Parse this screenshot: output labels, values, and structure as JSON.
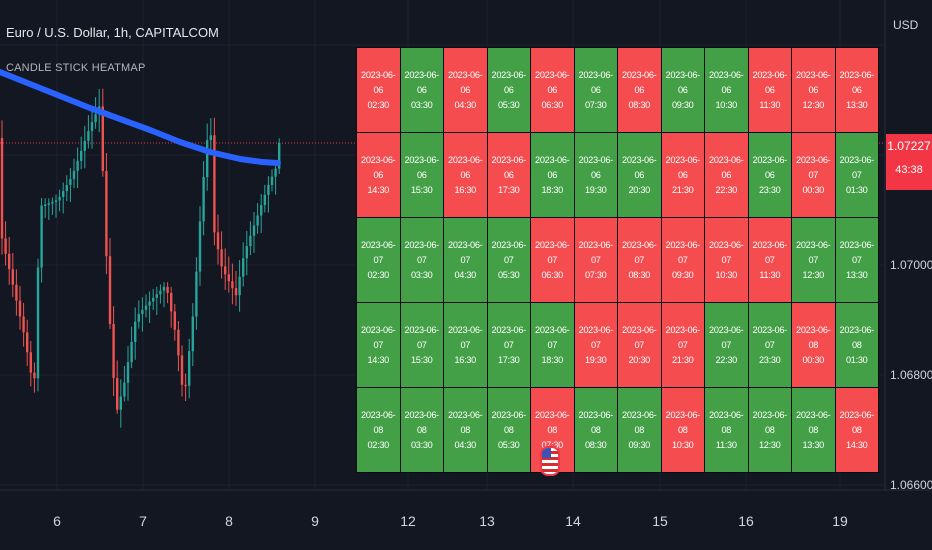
{
  "header": {
    "title": "Euro / U.S. Dollar, 1h, CAPITALCOM",
    "indicator_name": "CANDLE STICK HEATMAP"
  },
  "price_axis": {
    "currency": "USD",
    "last_price": "1.07227",
    "countdown": "43:38",
    "ticks": [
      "1.07000",
      "1.06800",
      "1.06600"
    ]
  },
  "time_axis": {
    "ticks": [
      "6",
      "7",
      "8",
      "9",
      "12",
      "13",
      "14",
      "15",
      "16",
      "19"
    ]
  },
  "colors": {
    "background": "#131722",
    "bull": "#43a047",
    "bear": "#f44c4f",
    "ma_line": "#2962ff"
  },
  "heatmap": {
    "rows": [
      [
        {
          "date": "2023-06-06",
          "time": "02:30",
          "dir": "down"
        },
        {
          "date": "2023-06-06",
          "time": "03:30",
          "dir": "up"
        },
        {
          "date": "2023-06-06",
          "time": "04:30",
          "dir": "down"
        },
        {
          "date": "2023-06-06",
          "time": "05:30",
          "dir": "up"
        },
        {
          "date": "2023-06-06",
          "time": "06:30",
          "dir": "down"
        },
        {
          "date": "2023-06-06",
          "time": "07:30",
          "dir": "up"
        },
        {
          "date": "2023-06-06",
          "time": "08:30",
          "dir": "down"
        },
        {
          "date": "2023-06-06",
          "time": "09:30",
          "dir": "up"
        },
        {
          "date": "2023-06-06",
          "time": "10:30",
          "dir": "up"
        },
        {
          "date": "2023-06-06",
          "time": "11:30",
          "dir": "down"
        },
        {
          "date": "2023-06-06",
          "time": "12:30",
          "dir": "down"
        },
        {
          "date": "2023-06-06",
          "time": "13:30",
          "dir": "down"
        }
      ],
      [
        {
          "date": "2023-06-06",
          "time": "14:30",
          "dir": "down"
        },
        {
          "date": "2023-06-06",
          "time": "15:30",
          "dir": "up"
        },
        {
          "date": "2023-06-06",
          "time": "16:30",
          "dir": "down"
        },
        {
          "date": "2023-06-06",
          "time": "17:30",
          "dir": "down"
        },
        {
          "date": "2023-06-06",
          "time": "18:30",
          "dir": "up"
        },
        {
          "date": "2023-06-06",
          "time": "19:30",
          "dir": "up"
        },
        {
          "date": "2023-06-06",
          "time": "20:30",
          "dir": "up"
        },
        {
          "date": "2023-06-06",
          "time": "21:30",
          "dir": "down"
        },
        {
          "date": "2023-06-06",
          "time": "22:30",
          "dir": "down"
        },
        {
          "date": "2023-06-06",
          "time": "23:30",
          "dir": "up"
        },
        {
          "date": "2023-06-07",
          "time": "00:30",
          "dir": "down"
        },
        {
          "date": "2023-06-07",
          "time": "01:30",
          "dir": "up"
        }
      ],
      [
        {
          "date": "2023-06-07",
          "time": "02:30",
          "dir": "up"
        },
        {
          "date": "2023-06-07",
          "time": "03:30",
          "dir": "up"
        },
        {
          "date": "2023-06-07",
          "time": "04:30",
          "dir": "up"
        },
        {
          "date": "2023-06-07",
          "time": "05:30",
          "dir": "up"
        },
        {
          "date": "2023-06-07",
          "time": "06:30",
          "dir": "down"
        },
        {
          "date": "2023-06-07",
          "time": "07:30",
          "dir": "down"
        },
        {
          "date": "2023-06-07",
          "time": "08:30",
          "dir": "down"
        },
        {
          "date": "2023-06-07",
          "time": "09:30",
          "dir": "down"
        },
        {
          "date": "2023-06-07",
          "time": "10:30",
          "dir": "down"
        },
        {
          "date": "2023-06-07",
          "time": "11:30",
          "dir": "down"
        },
        {
          "date": "2023-06-07",
          "time": "12:30",
          "dir": "up"
        },
        {
          "date": "2023-06-07",
          "time": "13:30",
          "dir": "up"
        }
      ],
      [
        {
          "date": "2023-06-07",
          "time": "14:30",
          "dir": "up"
        },
        {
          "date": "2023-06-07",
          "time": "15:30",
          "dir": "up"
        },
        {
          "date": "2023-06-07",
          "time": "16:30",
          "dir": "up"
        },
        {
          "date": "2023-06-07",
          "time": "17:30",
          "dir": "up"
        },
        {
          "date": "2023-06-07",
          "time": "18:30",
          "dir": "up"
        },
        {
          "date": "2023-06-07",
          "time": "19:30",
          "dir": "down"
        },
        {
          "date": "2023-06-07",
          "time": "20:30",
          "dir": "down"
        },
        {
          "date": "2023-06-07",
          "time": "21:30",
          "dir": "down"
        },
        {
          "date": "2023-06-07",
          "time": "22:30",
          "dir": "up"
        },
        {
          "date": "2023-06-07",
          "time": "23:30",
          "dir": "up"
        },
        {
          "date": "2023-06-08",
          "time": "00:30",
          "dir": "down"
        },
        {
          "date": "2023-06-08",
          "time": "01:30",
          "dir": "up"
        }
      ],
      [
        {
          "date": "2023-06-08",
          "time": "02:30",
          "dir": "up"
        },
        {
          "date": "2023-06-08",
          "time": "03:30",
          "dir": "up"
        },
        {
          "date": "2023-06-08",
          "time": "04:30",
          "dir": "up"
        },
        {
          "date": "2023-06-08",
          "time": "05:30",
          "dir": "up"
        },
        {
          "date": "2023-06-08",
          "time": "07:30",
          "dir": "down"
        },
        {
          "date": "2023-06-08",
          "time": "08:30",
          "dir": "up"
        },
        {
          "date": "2023-06-08",
          "time": "09:30",
          "dir": "up"
        },
        {
          "date": "2023-06-08",
          "time": "10:30",
          "dir": "down"
        },
        {
          "date": "2023-06-08",
          "time": "11:30",
          "dir": "up"
        },
        {
          "date": "2023-06-08",
          "time": "12:30",
          "dir": "up"
        },
        {
          "date": "2023-06-08",
          "time": "13:30",
          "dir": "up"
        },
        {
          "date": "2023-06-08",
          "time": "14:30",
          "dir": "down"
        }
      ]
    ]
  }
}
